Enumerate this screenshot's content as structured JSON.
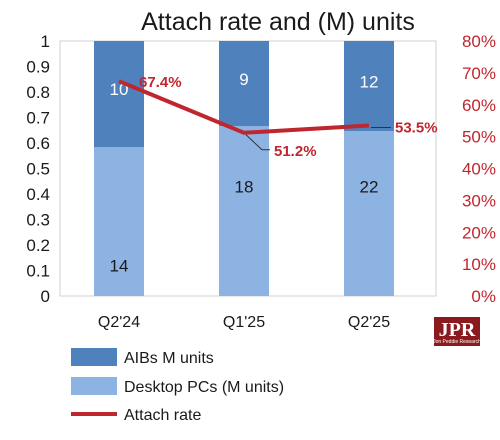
{
  "chart_data": {
    "type": "stacked-bar-with-line",
    "title": "Attach rate and (M) units",
    "categories": [
      "Q2'24",
      "Q1'25",
      "Q2'25"
    ],
    "left_axis": {
      "min": 0,
      "max": 1,
      "step": 0.1,
      "ticks": [
        "0",
        "0.1",
        "0.2",
        "0.3",
        "0.4",
        "0.5",
        "0.6",
        "0.7",
        "0.8",
        "0.9",
        "1"
      ]
    },
    "right_axis": {
      "min": 0,
      "max": 0.8,
      "step": 0.1,
      "ticks": [
        "0%",
        "10%",
        "20%",
        "30%",
        "40%",
        "50%",
        "60%",
        "70%",
        "80%"
      ]
    },
    "series": [
      {
        "name": "Desktop PCs (M units)",
        "units": [
          14,
          18,
          22
        ],
        "share": [
          0.5833,
          0.6667,
          0.6471
        ],
        "color": "#8db3e2"
      },
      {
        "name": "AIBs M units",
        "units": [
          10,
          9,
          12
        ],
        "share": [
          0.4167,
          0.3333,
          0.3529
        ],
        "color": "#4f81bd"
      }
    ],
    "line": {
      "name": "Attach rate",
      "values": [
        0.674,
        0.512,
        0.535
      ],
      "labels": [
        "67.4%",
        "51.2%",
        "53.5%"
      ],
      "color": "#c0262d"
    },
    "legend": [
      {
        "label": "AIBs M units",
        "kind": "box",
        "color": "#4f81bd"
      },
      {
        "label": "Desktop PCs (M units)",
        "kind": "box",
        "color": "#8db3e2"
      },
      {
        "label": "Attach rate",
        "kind": "line",
        "color": "#c0262d"
      }
    ],
    "legend_position": "bottom-left",
    "logo": {
      "text": "JPR",
      "subtext": "Jon Peddie Research"
    },
    "grid": false
  }
}
